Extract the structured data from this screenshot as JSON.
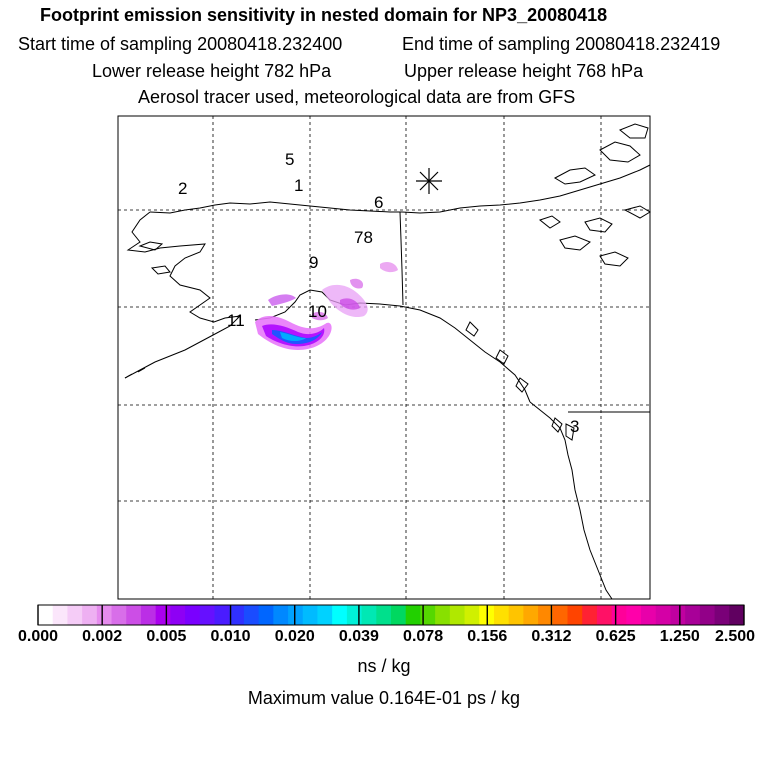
{
  "header": {
    "title": "Footprint emission sensitivity in nested domain for NP3_20080418",
    "start_time": "Start time of sampling 20080418.232400",
    "end_time": "End time of sampling 20080418.232419",
    "lower_height": "Lower release height  782 hPa",
    "upper_height": "Upper release height  768 hPa",
    "tracer_note": "Aerosol tracer used, meteorological data are from GFS"
  },
  "map": {
    "release_marker_icon": "asterisk-icon",
    "track_labels": [
      {
        "text": "1"
      },
      {
        "text": "2"
      },
      {
        "text": "3"
      },
      {
        "text": "5"
      },
      {
        "text": "6"
      },
      {
        "text": "78"
      },
      {
        "text": "9"
      },
      {
        "text": "10"
      },
      {
        "text": "11"
      }
    ],
    "plume_colors": {
      "light": "#e879f9",
      "medium": "#aa00ff",
      "dark": "#2255ff",
      "core": "#00aaff"
    }
  },
  "colorbar": {
    "tick_labels": [
      "0.000",
      "0.002",
      "0.005",
      "0.010",
      "0.020",
      "0.039",
      "0.078",
      "0.156",
      "0.312",
      "0.625",
      "1.250",
      "2.500"
    ],
    "colors": [
      "#ffffff",
      "#fbe6fb",
      "#f5ccf7",
      "#eeb0f2",
      "#e68cee",
      "#d86ee9",
      "#cc4ee6",
      "#bb2ee6",
      "#aa00ee",
      "#8e00f5",
      "#7a00ff",
      "#6610ff",
      "#4a1cff",
      "#3030ff",
      "#1a4cff",
      "#0066ff",
      "#0088ff",
      "#00a2ff",
      "#00bbff",
      "#00d2ff",
      "#00ffff",
      "#00f0d8",
      "#00e8b4",
      "#00e08c",
      "#00d860",
      "#22d000",
      "#55d800",
      "#88e000",
      "#b0e800",
      "#d0f000",
      "#ffff00",
      "#ffe000",
      "#ffc400",
      "#ffa800",
      "#ff8800",
      "#ff6600",
      "#ff4400",
      "#ff2233",
      "#ff1166",
      "#ff0099",
      "#ff00aa",
      "#e800aa",
      "#d400a6",
      "#c000a0",
      "#a80098",
      "#920088",
      "#7a0078",
      "#600060"
    ],
    "units": "ns / kg",
    "max_value": "Maximum value  0.164E-01 ps / kg"
  }
}
